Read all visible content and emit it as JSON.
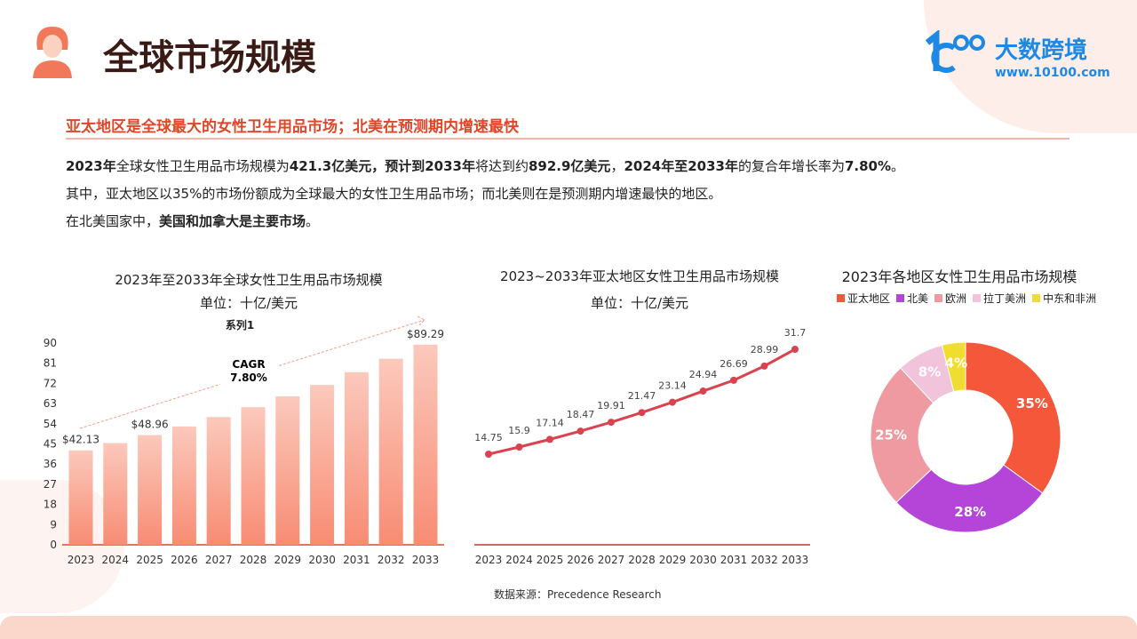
{
  "header": {
    "title": "全球市场规模",
    "logo_text": "大数跨境",
    "logo_url": "www.10100.com"
  },
  "subtitle": "亚太地区是全球最大的女性卫生用品市场；北美在预测期内增速最快",
  "paragraphs": [
    [
      "2023年",
      "全球女性卫生用品市场规模为",
      "421.3亿美元，预计到2033年",
      "将达到约",
      "892.9亿美元",
      "，",
      "2024年至2033年",
      "的复合年增长率为",
      "7.80%",
      "。"
    ],
    [
      "其中，亚太地区以35%的市场份额成为全球最大的女性卫生用品市场；而北美则在是预测期内增速最快的地区。"
    ],
    [
      "在北美国家中，",
      "美国和加拿大是主要市场",
      "。"
    ]
  ],
  "source": "数据来源：Precedence Research",
  "colors": {
    "accent": "#e0462a",
    "bar": "#f9a08c",
    "line": "#d9434f"
  },
  "chart_data": [
    {
      "type": "bar",
      "title": "2023年至2033年全球女性卫生用品市场规模",
      "subtitle": "单位：十亿/美元",
      "series_label": "系列1",
      "categories": [
        "2023",
        "2024",
        "2025",
        "2026",
        "2027",
        "2028",
        "2029",
        "2030",
        "2031",
        "2032",
        "2033"
      ],
      "values": [
        42.13,
        45.4,
        48.96,
        52.8,
        57.0,
        61.4,
        66.2,
        71.3,
        77.0,
        83.0,
        89.29
      ],
      "data_labels": {
        "0": "$42.13",
        "2": "$48.96",
        "10": "$89.29"
      },
      "yticks": [
        0,
        9,
        18,
        27,
        36,
        45,
        54,
        63,
        72,
        81,
        90
      ],
      "ylim": [
        0,
        90
      ],
      "annotation": [
        "CAGR",
        "7.80%"
      ]
    },
    {
      "type": "line",
      "title": "2023~2033年亚太地区女性卫生用品市场规模",
      "subtitle": "单位：十亿/美元",
      "categories": [
        "2023",
        "2024",
        "2025",
        "2026",
        "2027",
        "2028",
        "2029",
        "2030",
        "2031",
        "2032",
        "2033"
      ],
      "values": [
        14.75,
        15.9,
        17.14,
        18.47,
        19.91,
        21.47,
        23.14,
        24.94,
        26.69,
        28.99,
        31.7
      ]
    },
    {
      "type": "pie",
      "title": "2023年各地区女性卫生用品市场规模",
      "donut": true,
      "labels": [
        "亚太地区",
        "北美",
        "欧洲",
        "拉丁美洲",
        "中东和非洲"
      ],
      "values": [
        35,
        28,
        25,
        8,
        4
      ],
      "colors": [
        "#f4573a",
        "#b545d8",
        "#ee9aa0",
        "#f2c4dc",
        "#f1dd2f"
      ]
    }
  ]
}
